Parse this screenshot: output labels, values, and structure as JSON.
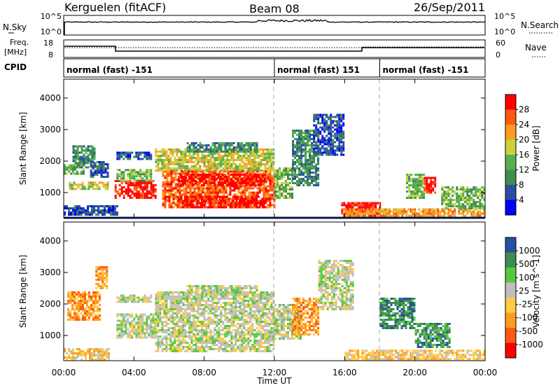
{
  "header": {
    "station": "Kerguelen (fitACF)",
    "beam": "Beam 08",
    "date": "26/Sep/2011"
  },
  "sky_panel": {
    "left_label": "N.Sky",
    "right_label": "N.Search",
    "left_ticks": [
      "10^5",
      "10^0"
    ],
    "right_ticks": [
      "10^5",
      "10^0"
    ]
  },
  "freq_panel": {
    "left_label_1": "Freq.",
    "left_label_2": "[MHz]",
    "right_label": "Nave",
    "left_ticks": [
      "18",
      "8"
    ],
    "right_ticks": [
      "60",
      "0"
    ]
  },
  "cpid_panel": {
    "label": "CPID",
    "segments": [
      {
        "text": "normal (fast) -151",
        "start_h": 0,
        "end_h": 12
      },
      {
        "text": "normal (fast) 151",
        "start_h": 12,
        "end_h": 18
      },
      {
        "text": "normal (fast) -151",
        "start_h": 18,
        "end_h": 24
      }
    ]
  },
  "colors": {
    "power_scale": [
      "#0000ff",
      "#2b4fa0",
      "#3e8c50",
      "#55b04f",
      "#c8d23c",
      "#ff9c1e",
      "#ff5a14",
      "#ff0000"
    ],
    "velocity_scale": [
      "#ff0000",
      "#ff5a14",
      "#ff9c1e",
      "#ffcc44",
      "#bfbfbf",
      "#55c840",
      "#3e8c50",
      "#2b4fa0"
    ]
  },
  "chart_data": [
    {
      "type": "heatmap",
      "name_id": "power",
      "xlabel": "",
      "ylabel": "Slant Range [km]",
      "xlim": [
        0,
        24
      ],
      "ylim": [
        200,
        4600
      ],
      "yticks": [
        "1000",
        "2000",
        "3000",
        "4000"
      ],
      "colorbar": {
        "label": "Power [dB]",
        "ticks": [
          "4",
          "8",
          "12",
          "16",
          "20",
          "24",
          "28"
        ]
      },
      "regions": [
        {
          "t0": 0.0,
          "t1": 1.1,
          "r0": 1600,
          "r1": 1900,
          "level": 3
        },
        {
          "t0": 0.5,
          "t1": 1.8,
          "r0": 1800,
          "r1": 2500,
          "level": 2
        },
        {
          "t0": 1.5,
          "t1": 2.5,
          "r0": 1500,
          "r1": 2000,
          "level": 1
        },
        {
          "t0": 0.3,
          "t1": 2.5,
          "r0": 1100,
          "r1": 1350,
          "level": 4
        },
        {
          "t0": 0.0,
          "t1": 3.0,
          "r0": 280,
          "r1": 600,
          "level": 1
        },
        {
          "t0": 3.0,
          "t1": 5.0,
          "r0": 2050,
          "r1": 2300,
          "level": 1
        },
        {
          "t0": 2.9,
          "t1": 5.2,
          "r0": 850,
          "r1": 1400,
          "level": 7
        },
        {
          "t0": 3.0,
          "t1": 5.0,
          "r0": 1400,
          "r1": 1750,
          "level": 3
        },
        {
          "t0": 5.2,
          "t1": 12.0,
          "r0": 1700,
          "r1": 2400,
          "level": 4
        },
        {
          "t0": 5.6,
          "t1": 12.0,
          "r0": 500,
          "r1": 1700,
          "level": 6
        },
        {
          "t0": 6.5,
          "t1": 11.5,
          "r0": 1250,
          "r1": 1600,
          "level": 7
        },
        {
          "t0": 6.5,
          "t1": 11.5,
          "r0": 550,
          "r1": 900,
          "level": 7
        },
        {
          "t0": 7.0,
          "t1": 11.0,
          "r0": 2300,
          "r1": 2600,
          "level": 2
        },
        {
          "t0": 12.0,
          "t1": 13.0,
          "r0": 800,
          "r1": 1800,
          "level": 3
        },
        {
          "t0": 13.0,
          "t1": 14.5,
          "r0": 1200,
          "r1": 3000,
          "level": 2
        },
        {
          "t0": 14.2,
          "t1": 15.9,
          "r0": 2200,
          "r1": 3500,
          "level": 1
        },
        {
          "t0": 15.8,
          "t1": 18.0,
          "r0": 280,
          "r1": 700,
          "level": 7
        },
        {
          "t0": 16.0,
          "t1": 24.0,
          "r0": 280,
          "r1": 500,
          "level": 5
        },
        {
          "t0": 19.5,
          "t1": 20.5,
          "r0": 800,
          "r1": 1600,
          "level": 3
        },
        {
          "t0": 20.5,
          "t1": 21.2,
          "r0": 1000,
          "r1": 1500,
          "level": 7
        },
        {
          "t0": 21.5,
          "t1": 24.0,
          "r0": 500,
          "r1": 1200,
          "level": 3
        }
      ]
    },
    {
      "type": "heatmap",
      "name_id": "velocity",
      "xlabel": "Time UT",
      "ylabel": "Slant Range [km]",
      "xlim": [
        0,
        24
      ],
      "ylim": [
        200,
        4600
      ],
      "xticks": [
        "00:00",
        "04:00",
        "08:00",
        "12:00",
        "16:00",
        "20:00",
        "00:00"
      ],
      "yticks": [
        "1000",
        "2000",
        "3000",
        "4000"
      ],
      "colorbar": {
        "label": "Velocity [m s^-1]",
        "ticks": [
          "-1000",
          "-500",
          "-100",
          "-25",
          "25",
          "100",
          "500",
          "1000"
        ]
      },
      "regions": [
        {
          "t0": 0.2,
          "t1": 2.0,
          "r0": 1500,
          "r1": 2400,
          "level": 2
        },
        {
          "t0": 1.8,
          "t1": 2.5,
          "r0": 2500,
          "r1": 3200,
          "level": 2
        },
        {
          "t0": 0.0,
          "t1": 2.6,
          "r0": 250,
          "r1": 600,
          "level": 3
        },
        {
          "t0": 3.0,
          "t1": 5.0,
          "r0": 2050,
          "r1": 2300,
          "level": 4
        },
        {
          "t0": 3.0,
          "t1": 5.2,
          "r0": 900,
          "r1": 1700,
          "level": 4
        },
        {
          "t0": 5.2,
          "t1": 12.0,
          "r0": 500,
          "r1": 2400,
          "level": 4
        },
        {
          "t0": 7.0,
          "t1": 11.0,
          "r0": 2300,
          "r1": 2600,
          "level": 4
        },
        {
          "t0": 12.0,
          "t1": 13.5,
          "r0": 900,
          "r1": 2000,
          "level": 4
        },
        {
          "t0": 13.0,
          "t1": 14.5,
          "r0": 1000,
          "r1": 2200,
          "level": 2
        },
        {
          "t0": 14.5,
          "t1": 16.5,
          "r0": 1800,
          "r1": 3400,
          "level": 4
        },
        {
          "t0": 16.0,
          "t1": 24.0,
          "r0": 280,
          "r1": 550,
          "level": 3
        },
        {
          "t0": 18.0,
          "t1": 20.0,
          "r0": 1200,
          "r1": 2200,
          "level": 6
        },
        {
          "t0": 20.0,
          "t1": 22.0,
          "r0": 600,
          "r1": 1400,
          "level": 6
        }
      ]
    }
  ]
}
